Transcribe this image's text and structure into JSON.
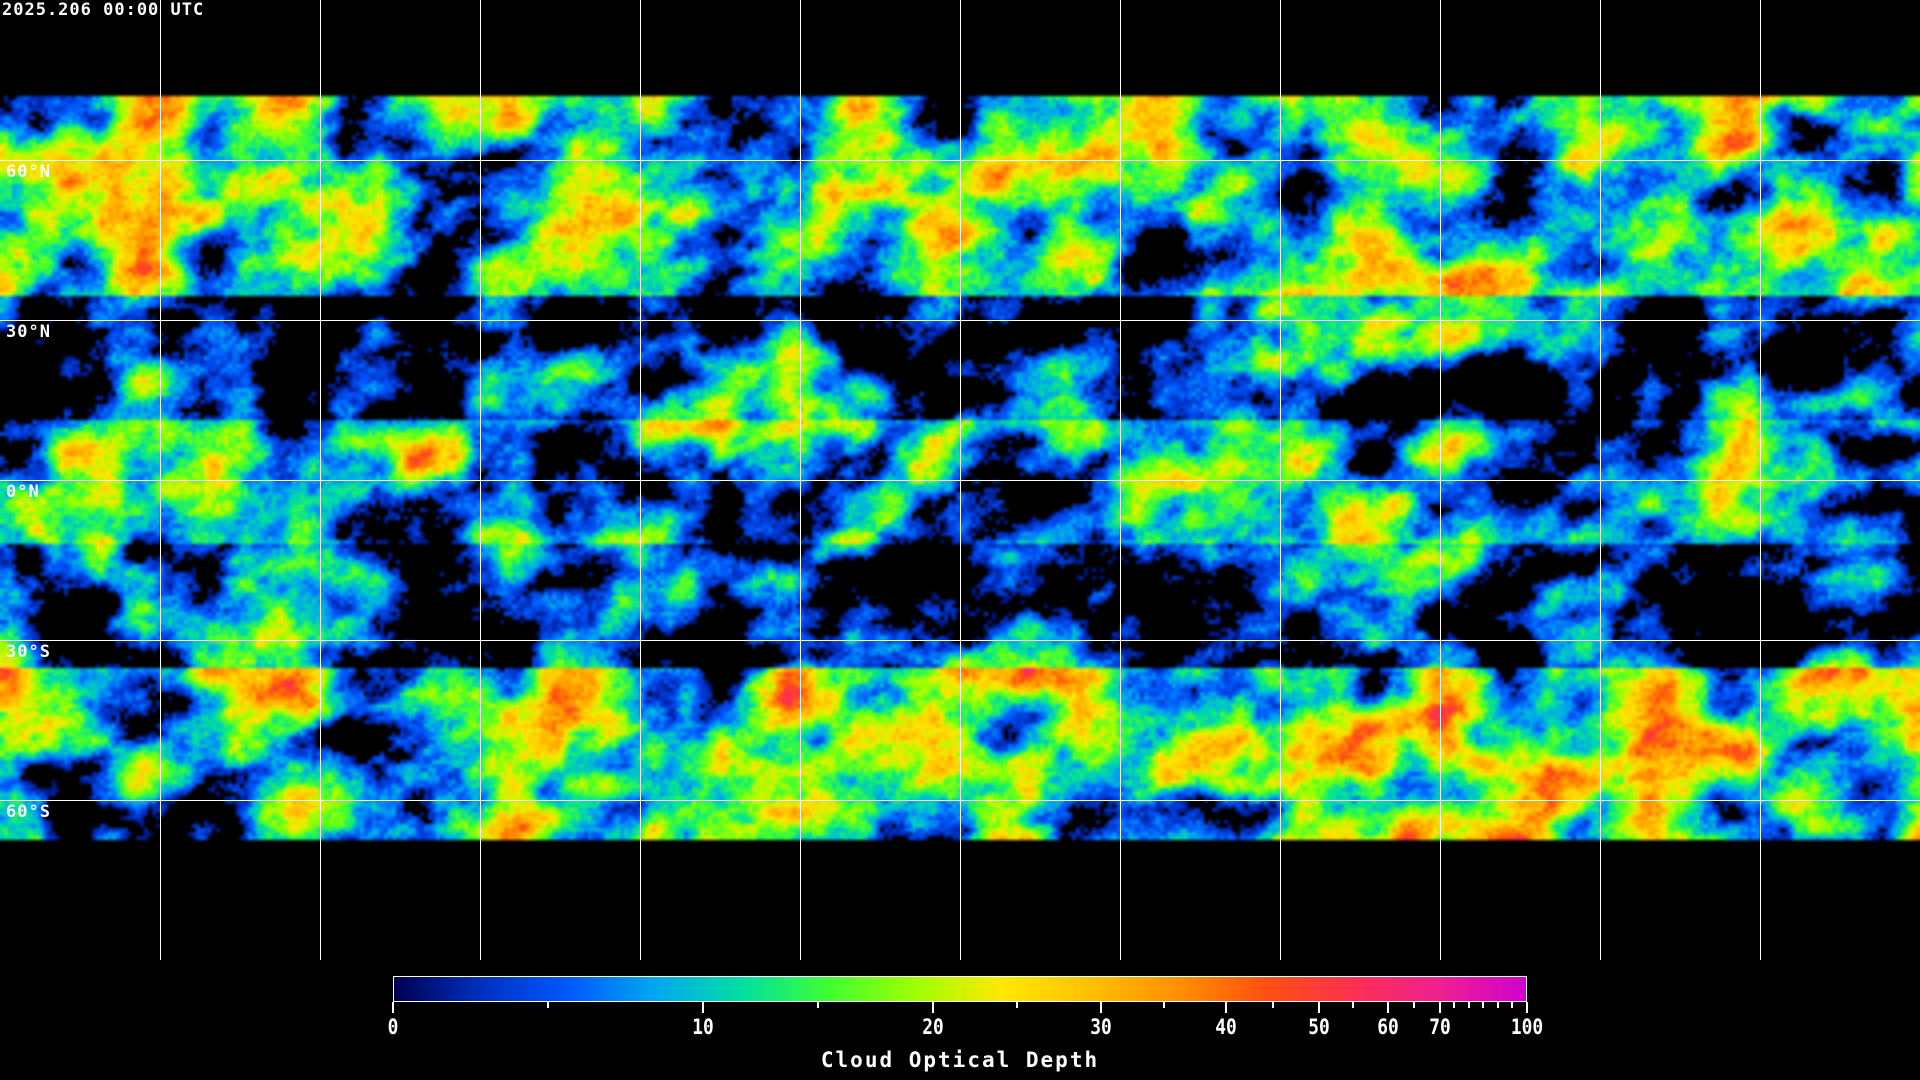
{
  "header": {
    "timestamp": "2025.206 00:00 UTC"
  },
  "map": {
    "projection": "equirectangular",
    "lat_labels": [
      "60°N",
      "30°N",
      "0°N",
      "30°S",
      "60°S"
    ],
    "lat_lines": [
      60,
      30,
      0,
      -30,
      -60
    ],
    "lon_grid_spacing_deg": 30,
    "coastline_color": "#ffffff",
    "grid_color": "#ffffff",
    "background": "#000000"
  },
  "colorbar": {
    "title": "Cloud Optical Depth",
    "tick_labels": [
      "0",
      "10",
      "20",
      "30",
      "40",
      "50",
      "60",
      "70",
      "100"
    ],
    "minor_ticks": [
      5,
      15,
      25,
      35,
      45,
      55,
      65,
      75,
      80,
      85,
      90,
      95
    ],
    "range": [
      0,
      100
    ],
    "colors": [
      "#000050",
      "#0030c0",
      "#0058ff",
      "#00a8f0",
      "#00e0a0",
      "#40ff30",
      "#a0ff00",
      "#ffe800",
      "#ffc000",
      "#ff9000",
      "#ff5010",
      "#ff3050",
      "#f02090",
      "#d000d0"
    ]
  }
}
